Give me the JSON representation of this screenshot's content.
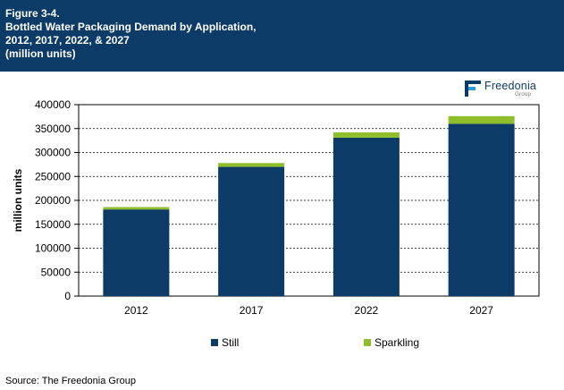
{
  "header": {
    "figure_label": "Figure 3-4.",
    "title_line1": "Bottled Water Packaging Demand by Application,",
    "title_line2": "2012, 2017, 2022, & 2027",
    "title_line3": "(million units)"
  },
  "logo": {
    "name": "Freedonia",
    "sub": "Group"
  },
  "source": "Source: The Freedonia Group",
  "colors": {
    "still": "#0d3b68",
    "sparkling": "#8fbe2a",
    "header": "#0d3b68"
  },
  "chart_data": {
    "type": "bar",
    "stacked": true,
    "title": "Bottled Water Packaging Demand by Application, 2012, 2017, 2022, & 2027",
    "xlabel": "",
    "ylabel": "million units",
    "categories": [
      "2012",
      "2017",
      "2022",
      "2027"
    ],
    "series": [
      {
        "name": "Still",
        "values": [
          181000,
          270000,
          331000,
          360000
        ]
      },
      {
        "name": "Sparkling",
        "values": [
          5000,
          8000,
          11000,
          16000
        ]
      }
    ],
    "ylim": [
      0,
      400000
    ],
    "yticks": [
      "0",
      "50000",
      "100000",
      "150000",
      "200000",
      "250000",
      "300000",
      "350000",
      "400000"
    ],
    "grid": true,
    "legend_position": "bottom"
  }
}
